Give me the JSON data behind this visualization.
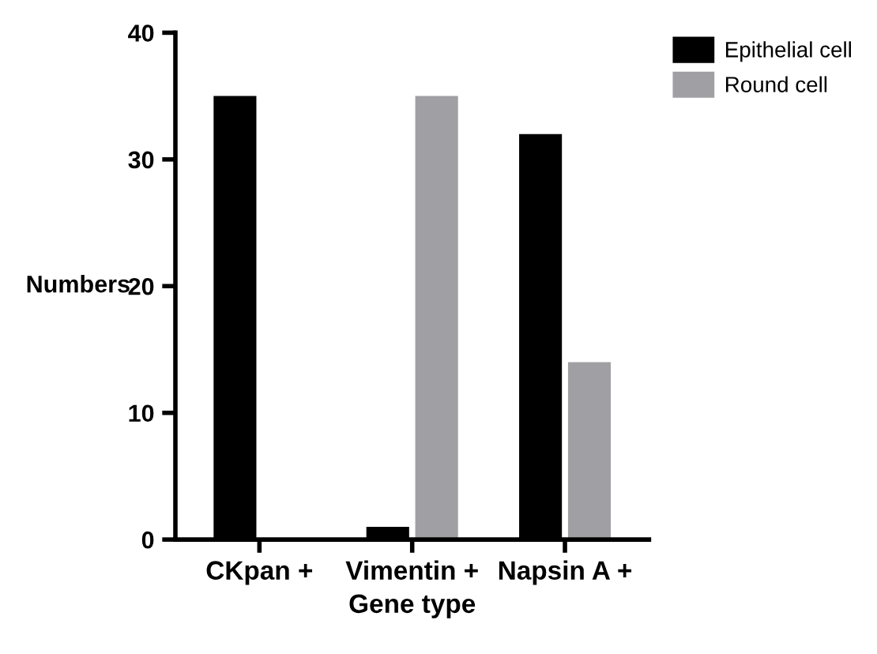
{
  "chart_data": {
    "type": "bar",
    "categories": [
      "CKpan +",
      "Vimentin +",
      "Napsin A +"
    ],
    "series": [
      {
        "name": "Epithelial cell",
        "color": "#000000",
        "values": [
          35,
          1,
          32
        ]
      },
      {
        "name": "Round cell",
        "color": "#a0a0a4",
        "values": [
          0,
          35,
          14
        ]
      }
    ],
    "xlabel": "Gene type",
    "ylabel": "Numbers",
    "ylim": [
      0,
      40
    ],
    "yticks": [
      0,
      10,
      20,
      30,
      40
    ],
    "grid": false,
    "legend": "top right"
  }
}
